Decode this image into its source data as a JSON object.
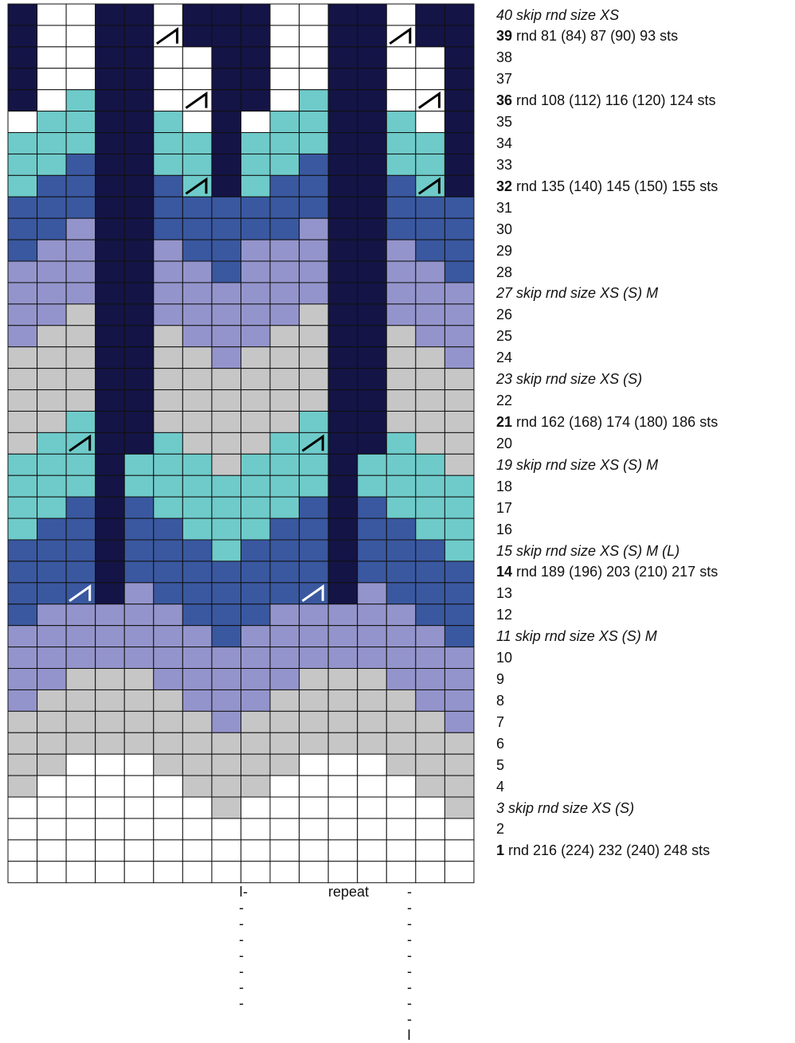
{
  "colors": {
    "W": "#ffffff",
    "G": "#c6c6c6",
    "L": "#9494cc",
    "B": "#3a58a0",
    "T": "#6ecbca",
    "D": "#141446",
    "grid": "#111111"
  },
  "grid_rows": [
    "DWWDDWDDDWWDDWDD",
    "DWWDDWDDDWWDDWDD",
    "DWWDDWWDDWWDDWWD",
    "DWWDDWWDDWWDDWWD",
    "DWTDDWWDDWTDDWWD",
    "WTTDDTWDWTTDDTWD",
    "TTTDDTTDTTTDDTTD",
    "TTBDDTTDTTBDDTTD",
    "TBBDDBTDTBBDDBTD",
    "BBBDDBBBBBBDDBBB",
    "BBLDDBBBBBLDDBBB",
    "BLLDDLBBLLLDDLBB",
    "LLLDDLLBLLLDDLLB",
    "LLLDDLLLLLLDDLLL",
    "LLGDDLLLLLGDDLLL",
    "LGGDDGLLLGGDDGLL",
    "GGGDDGGLGGGDDGGL",
    "GGGDDGGGGGGDDGGG",
    "GGGDDGGGGGGDDGGG",
    "GGTDDGGGGGTDDGGG",
    "GTTDDTGGGTTDDTGG",
    "TTTDTTTGTTTDTTTG",
    "TTTDTTTTTTTDTTTT",
    "TTBDBTTTTTBDBTTT",
    "TBBDBBTTTBBDBBTT",
    "BBBDBBBTBBBDBBBT",
    "BBBDBBBBBBBDBBBB",
    "BBBDLBBBBBBDLBBB",
    "BLLLLLBBBLLLLLBB",
    "LLLLLLLBLLLLLLLB",
    "LLLLLLLLLLLLLLLL",
    "LLGGGLLLLLGGGLLL",
    "LGGGGGLLLGGGGGLL",
    "GGGGGGGLGGGGGGGL",
    "GGGGGGGGGGGGGGGG",
    "GGWWWGGGGGWWWGGG",
    "GWWWWWGGGWWWWWGG",
    "WWWWWWWGWWWWWWWG",
    "WWWWWWWWWWWWWWWW",
    "WWWWWWWWWWWWWWWW",
    "WWWWWWWWWWWWWWWW"
  ],
  "decrease_marks": [
    {
      "row": 1,
      "col": 5,
      "color": "black"
    },
    {
      "row": 1,
      "col": 13,
      "color": "black"
    },
    {
      "row": 4,
      "col": 6,
      "color": "black"
    },
    {
      "row": 4,
      "col": 14,
      "color": "black"
    },
    {
      "row": 8,
      "col": 6,
      "color": "black"
    },
    {
      "row": 8,
      "col": 14,
      "color": "black"
    },
    {
      "row": 20,
      "col": 2,
      "color": "black"
    },
    {
      "row": 20,
      "col": 10,
      "color": "black"
    },
    {
      "row": 27,
      "col": 2,
      "color": "white"
    },
    {
      "row": 27,
      "col": 10,
      "color": "white"
    }
  ],
  "row_labels": [
    {
      "num": "40",
      "text": " skip rnd size XS",
      "italic": true
    },
    {
      "num": "39",
      "text": " rnd 81 (84) 87 (90) 93 sts",
      "bold": true
    },
    {
      "num": "38",
      "text": ""
    },
    {
      "num": "37",
      "text": ""
    },
    {
      "num": "36",
      "text": " rnd 108 (112) 116 (120) 124 sts",
      "bold": true
    },
    {
      "num": "35",
      "text": ""
    },
    {
      "num": "34",
      "text": ""
    },
    {
      "num": "33",
      "text": ""
    },
    {
      "num": "32",
      "text": " rnd 135 (140) 145 (150) 155 sts",
      "bold": true
    },
    {
      "num": "31",
      "text": ""
    },
    {
      "num": "30",
      "text": ""
    },
    {
      "num": "29",
      "text": ""
    },
    {
      "num": "28",
      "text": ""
    },
    {
      "num": "27",
      "text": " skip rnd size XS (S) M",
      "italic": true
    },
    {
      "num": "26",
      "text": ""
    },
    {
      "num": "25",
      "text": ""
    },
    {
      "num": "24",
      "text": ""
    },
    {
      "num": "23",
      "text": " skip rnd size XS (S)",
      "italic": true
    },
    {
      "num": "22",
      "text": ""
    },
    {
      "num": "21",
      "text": " rnd 162 (168) 174 (180) 186 sts",
      "bold": true
    },
    {
      "num": "20",
      "text": ""
    },
    {
      "num": "19",
      "text": " skip rnd size XS (S) M",
      "italic": true
    },
    {
      "num": "18",
      "text": ""
    },
    {
      "num": "17",
      "text": ""
    },
    {
      "num": "16",
      "text": ""
    },
    {
      "num": "15",
      "text": " skip rnd size XS (S) M (L)",
      "italic": true
    },
    {
      "num": "14",
      "text": " rnd 189 (196) 203 (210) 217 sts",
      "bold": true
    },
    {
      "num": "13",
      "text": ""
    },
    {
      "num": "12",
      "text": ""
    },
    {
      "num": "11",
      "text": " skip rnd size XS (S) M",
      "italic": true
    },
    {
      "num": "10",
      "text": ""
    },
    {
      "num": "9",
      "text": ""
    },
    {
      "num": "8",
      "text": ""
    },
    {
      "num": "7",
      "text": ""
    },
    {
      "num": "6",
      "text": ""
    },
    {
      "num": "5",
      "text": ""
    },
    {
      "num": "4",
      "text": ""
    },
    {
      "num": "3",
      "text": " skip rnd size XS (S)",
      "italic": true
    },
    {
      "num": "2",
      "text": ""
    },
    {
      "num": "1",
      "text": "  rnd 216 (224) 232 (240) 248 sts",
      "bold": true
    }
  ],
  "repeat": {
    "left": "I--------",
    "label": "repeat",
    "right": "---------I"
  }
}
